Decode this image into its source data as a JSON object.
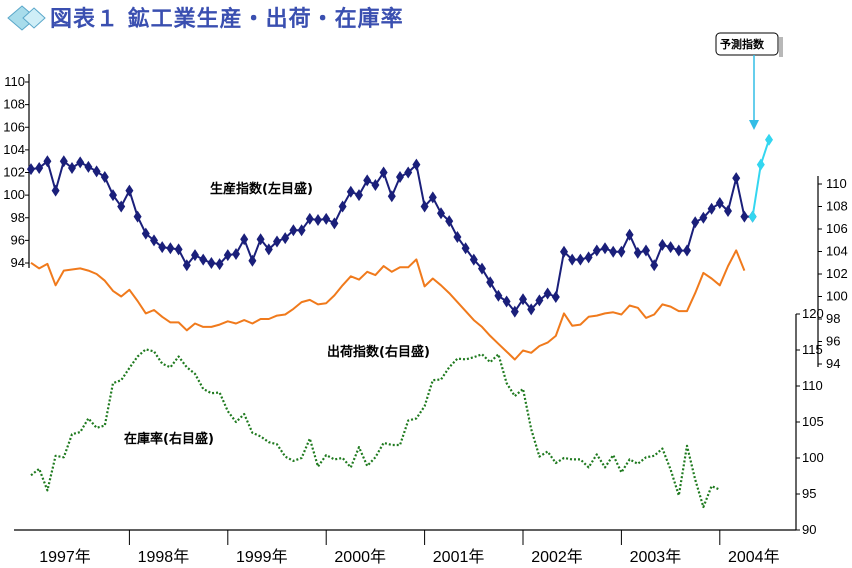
{
  "title": "図表１ 鉱工業生産・出荷・在庫率",
  "colors": {
    "production": "#1a1f7a",
    "forecast": "#33d6f0",
    "shipments": "#f07a1c",
    "inventory": "#1f7a1f",
    "title": "#3a4fb0"
  },
  "chart_data": {
    "type": "line",
    "x_labels": [
      "1997年",
      "1998年",
      "1999年",
      "2000年",
      "2001年",
      "2002年",
      "2003年",
      "2004年"
    ],
    "x_start": "1997-01",
    "axes": {
      "production_left": {
        "ticks": [
          94,
          96,
          98,
          100,
          102,
          104,
          106,
          108,
          110
        ],
        "range": [
          94,
          110
        ]
      },
      "shipments_right": {
        "ticks": [
          94,
          96,
          98,
          100,
          102,
          104,
          106,
          108,
          110
        ],
        "range": [
          94,
          110
        ]
      },
      "inventory_right": {
        "ticks": [
          90,
          95,
          100,
          105,
          110,
          115,
          120
        ],
        "range": [
          90,
          120
        ]
      }
    },
    "series": [
      {
        "name": "生産指数(左目盛)",
        "axis": "production_left",
        "marker": "diamond",
        "values": [
          102.3,
          102.4,
          103.0,
          100.4,
          103.0,
          102.4,
          102.9,
          102.5,
          102.1,
          101.6,
          100.0,
          99.0,
          100.4,
          98.1,
          96.6,
          96.0,
          95.4,
          95.3,
          95.2,
          93.8,
          94.7,
          94.3,
          94.0,
          93.9,
          94.7,
          94.8,
          96.1,
          94.2,
          96.1,
          95.2,
          95.9,
          96.2,
          96.9,
          96.9,
          97.9,
          97.8,
          97.9,
          97.5,
          99.0,
          100.3,
          100.0,
          101.3,
          100.9,
          102.0,
          99.9,
          101.6,
          102.0,
          102.7,
          99.0,
          99.8,
          98.4,
          97.7,
          96.3,
          95.3,
          94.3,
          93.5,
          92.3,
          91.1,
          90.6,
          89.7,
          90.8,
          89.9,
          90.7,
          91.3,
          91.0,
          95.0,
          94.3,
          94.3,
          94.5,
          95.1,
          95.3,
          95.0,
          95.0,
          96.5,
          94.9,
          95.1,
          93.8,
          95.6,
          95.4,
          95.1,
          95.1,
          97.6,
          98.0,
          98.8,
          99.3,
          98.6,
          101.5,
          98.1,
          98.1
        ]
      },
      {
        "name": "予測指数",
        "axis": "production_left",
        "marker": "diamond",
        "offset_months": 88,
        "values": [
          98.1,
          102.7,
          104.9
        ]
      },
      {
        "name": "出荷指数(右目盛)",
        "axis": "shipments_right",
        "values": [
          103.0,
          102.5,
          102.9,
          101.0,
          102.3,
          102.4,
          102.5,
          102.3,
          102.0,
          101.4,
          100.5,
          100.0,
          100.6,
          99.6,
          98.5,
          98.8,
          98.2,
          97.7,
          97.7,
          97.0,
          97.6,
          97.3,
          97.3,
          97.5,
          97.8,
          97.6,
          97.9,
          97.6,
          98.0,
          98.0,
          98.3,
          98.4,
          98.9,
          99.5,
          99.7,
          99.3,
          99.4,
          100.1,
          101.0,
          101.8,
          101.5,
          102.2,
          101.9,
          102.7,
          102.2,
          102.6,
          102.6,
          103.3,
          100.9,
          101.6,
          101.0,
          100.3,
          99.5,
          98.7,
          97.9,
          97.3,
          96.5,
          95.8,
          95.1,
          94.4,
          95.2,
          95.0,
          95.6,
          95.9,
          96.5,
          98.5,
          97.4,
          97.5,
          98.2,
          98.3,
          98.5,
          98.6,
          98.4,
          99.2,
          99.0,
          98.1,
          98.4,
          99.3,
          99.1,
          98.7,
          98.7,
          100.3,
          102.1,
          101.6,
          101.0,
          102.7,
          104.1,
          102.3
        ]
      },
      {
        "name": "在庫率(右目盛)",
        "axis": "inventory_right",
        "style": "dotted",
        "values": [
          97.6,
          98.5,
          95.5,
          100.3,
          100.1,
          103.3,
          103.6,
          105.5,
          104.2,
          104.5,
          110.4,
          110.8,
          112.5,
          114.1,
          115.1,
          114.8,
          113.1,
          112.6,
          114.1,
          112.6,
          111.7,
          109.6,
          109.0,
          109.1,
          106.5,
          105.0,
          106.1,
          103.5,
          103.0,
          102.2,
          101.9,
          100.2,
          99.6,
          100.0,
          102.7,
          98.8,
          100.4,
          99.8,
          100.0,
          98.7,
          101.5,
          98.9,
          100.1,
          102.1,
          101.8,
          101.8,
          105.2,
          105.5,
          107.2,
          110.8,
          110.9,
          112.6,
          113.8,
          113.7,
          114.0,
          114.4,
          113.3,
          114.4,
          110.4,
          108.6,
          109.6,
          104.0,
          100.2,
          100.9,
          99.3,
          100.0,
          99.8,
          99.8,
          98.7,
          100.5,
          98.7,
          100.4,
          98.0,
          99.8,
          99.2,
          100.1,
          100.3,
          101.3,
          98.4,
          94.8,
          101.7,
          97.0,
          93.2,
          96.1,
          95.6
        ]
      }
    ],
    "labels": {
      "production": "生産指数(左目盛)",
      "shipments": "出荷指数(右目盛)",
      "inventory": "在庫率(右目盛)",
      "forecast": "予測指数"
    }
  }
}
